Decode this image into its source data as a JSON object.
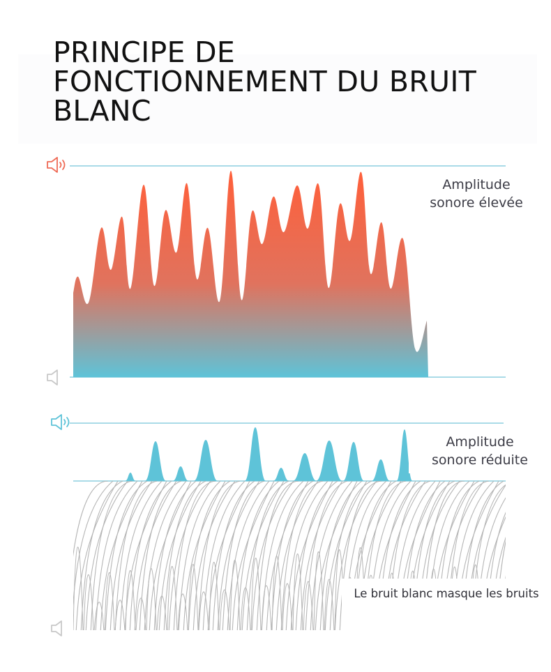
{
  "title": {
    "lines": [
      "PRINCIPE DE",
      "FONCTIONNEMENT DU BRUIT",
      "BLANC"
    ]
  },
  "panels": {
    "high": {
      "label_line1": "Amplitude",
      "label_line2": "sonore élevée",
      "colors": {
        "top": "#ff5f3a",
        "bottom": "#5ec3d8",
        "icon": "#ef6a55",
        "guide": "#a9dbe7"
      },
      "icon_top": "speaker-loud-icon",
      "icon_bottom": "speaker-mute-icon"
    },
    "low": {
      "label_line1": "Amplitude",
      "label_line2": "sonore réduite",
      "colors": {
        "fill": "#5ec3d8",
        "icon": "#5ec3d8",
        "guide": "#a9dbe7"
      },
      "icon_top": "speaker-loud-icon",
      "icon_bottom": "speaker-mute-icon"
    },
    "mask": {
      "label": "Le bruit blanc masque les bruits",
      "colors": {
        "stroke": "#b5b5b5"
      }
    }
  }
}
